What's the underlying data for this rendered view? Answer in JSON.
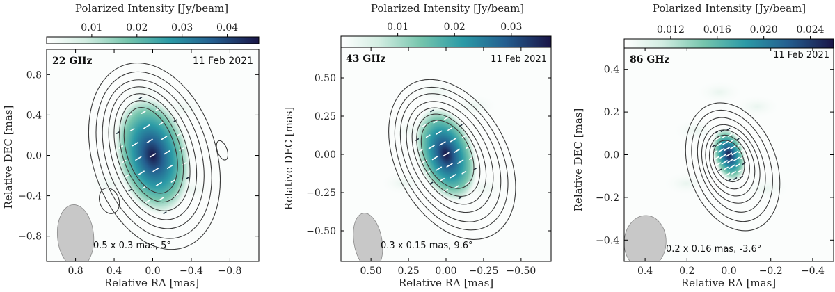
{
  "chart_data": [
    {
      "type": "heatmap",
      "colorbar_label": "Polarized Intensity [Jy/beam]",
      "colorbar_range": [
        0.0,
        0.047
      ],
      "colorbar_ticks": [
        0.01,
        0.02,
        0.03,
        0.04
      ],
      "colorbar_tick_labels": [
        "0.01",
        "0.02",
        "0.03",
        "0.04"
      ],
      "frequency": "22 GHz",
      "date": "11 Feb 2021",
      "beam_label": "0.5 x 0.3 mas, 5°",
      "beam": {
        "major": 0.5,
        "minor": 0.3,
        "pa_deg": 5,
        "center": [
          0.8,
          -0.8
        ]
      },
      "xlabel": "Relative RA [mas]",
      "ylabel": "Relative DEC [mas]",
      "xlim": [
        1.1,
        -1.1
      ],
      "ylim": [
        -1.05,
        1.05
      ],
      "xticks": [
        0.8,
        0.4,
        0.0,
        -0.4,
        -0.8
      ],
      "xtick_labels": [
        "0.8",
        "0.4",
        "0.0",
        "−0.4",
        "−0.8"
      ],
      "yticks": [
        0.8,
        0.4,
        0.0,
        -0.4,
        -0.8
      ],
      "ytick_labels": [
        "0.8",
        "0.4",
        "0.0",
        "−0.4",
        "−0.8"
      ],
      "pol_peak": 0.047,
      "pol_center": [
        0.0,
        0.0
      ],
      "pol_sigma": [
        0.18,
        0.28
      ],
      "pol_angle_deg": 12,
      "contour_center": [
        0.02,
        0.05
      ],
      "contour_radii": [
        [
          0.25,
          0.44
        ],
        [
          0.3,
          0.52
        ],
        [
          0.36,
          0.6
        ],
        [
          0.42,
          0.68
        ],
        [
          0.49,
          0.76
        ],
        [
          0.56,
          0.85
        ],
        [
          0.64,
          0.95
        ]
      ],
      "contour_angle_deg": 18,
      "extra_contours": [
        {
          "center": [
            -0.72,
            0.05
          ],
          "radii": [
            0.05,
            0.1
          ]
        },
        {
          "center": [
            0.45,
            -0.45
          ],
          "radii": [
            0.1,
            0.13
          ]
        }
      ]
    },
    {
      "type": "heatmap",
      "colorbar_label": "Polarized Intensity [Jy/beam]",
      "colorbar_range": [
        0.0,
        0.037
      ],
      "colorbar_ticks": [
        0.01,
        0.02,
        0.03
      ],
      "colorbar_tick_labels": [
        "0.01",
        "0.02",
        "0.03"
      ],
      "frequency": "43 GHz",
      "date": "11 Feb 2021",
      "beam_label": "0.3 x 0.15 mas, 9.6°",
      "beam": {
        "major": 0.3,
        "minor": 0.15,
        "pa_deg": 9.6,
        "center": [
          0.52,
          -0.57
        ]
      },
      "xlabel": "Relative RA [mas]",
      "ylabel": "Relative DEC [mas]",
      "xlim": [
        0.7,
        -0.7
      ],
      "ylim": [
        -0.7,
        0.7
      ],
      "xticks": [
        0.5,
        0.25,
        0.0,
        -0.25,
        -0.5
      ],
      "xtick_labels": [
        "0.50",
        "0.25",
        "0.00",
        "−0.25",
        "−0.50"
      ],
      "yticks": [
        0.5,
        0.25,
        0.0,
        -0.25,
        -0.5
      ],
      "ytick_labels": [
        "0.50",
        "0.25",
        "0.00",
        "−0.25",
        "−0.50"
      ],
      "pol_peak": 0.037,
      "pol_center": [
        0.0,
        0.0
      ],
      "pol_sigma": [
        0.09,
        0.15
      ],
      "pol_angle_deg": 18,
      "contour_center": [
        -0.01,
        0.0
      ],
      "contour_radii": [
        [
          0.15,
          0.24
        ],
        [
          0.18,
          0.29
        ],
        [
          0.21,
          0.34
        ],
        [
          0.25,
          0.39
        ],
        [
          0.29,
          0.45
        ],
        [
          0.33,
          0.5
        ],
        [
          0.37,
          0.56
        ]
      ],
      "contour_angle_deg": 28,
      "extra_contours": []
    },
    {
      "type": "heatmap",
      "colorbar_label": "Polarized Intensity [Jy/beam]",
      "colorbar_range": [
        0.008,
        0.026
      ],
      "colorbar_ticks": [
        0.012,
        0.016,
        0.02,
        0.024
      ],
      "colorbar_tick_labels": [
        "0.012",
        "0.016",
        "0.020",
        "0.024"
      ],
      "frequency": "86 GHz",
      "date": "11 Feb 2021",
      "beam_label": "0.2 x 0.16 mas, -3.6°",
      "beam": {
        "major": 0.2,
        "minor": 0.16,
        "pa_deg": -3.6,
        "center": [
          0.4,
          -0.41
        ]
      },
      "xlabel": "Relative RA [mas]",
      "ylabel": "Relative DEC [mas]",
      "xlim": [
        0.5,
        -0.5
      ],
      "ylim": [
        -0.5,
        0.5
      ],
      "xticks": [
        0.4,
        0.2,
        0.0,
        -0.2,
        -0.4
      ],
      "xtick_labels": [
        "0.4",
        "0.2",
        "0.0",
        "−0.2",
        "−0.4"
      ],
      "yticks": [
        0.4,
        0.2,
        0.0,
        -0.2,
        -0.4
      ],
      "ytick_labels": [
        "0.4",
        "0.2",
        "0.0",
        "−0.2",
        "−0.4"
      ],
      "pol_peak": 0.026,
      "pol_center": [
        0.0,
        0.0
      ],
      "pol_sigma": [
        0.035,
        0.06
      ],
      "pol_angle_deg": 15,
      "contour_center": [
        0.0,
        -0.03
      ],
      "contour_radii": [
        [
          0.07,
          0.1
        ],
        [
          0.09,
          0.13
        ],
        [
          0.11,
          0.16
        ],
        [
          0.13,
          0.19
        ],
        [
          0.15,
          0.23
        ],
        [
          0.18,
          0.27
        ],
        [
          0.21,
          0.31
        ]
      ],
      "contour_angle_deg": 20,
      "extra_contours": []
    }
  ]
}
